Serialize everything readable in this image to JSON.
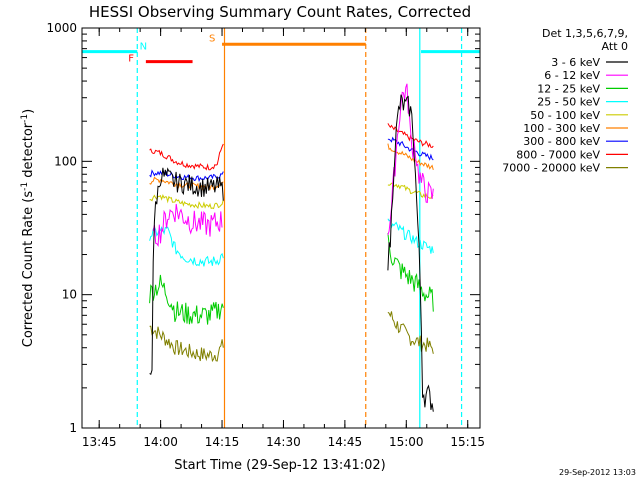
{
  "chart_data": {
    "type": "line",
    "title": "HESSI Observing Summary Count Rates, Corrected",
    "xlabel": "Start Time (29-Sep-12 13:41:02)",
    "ylabel_main": "Corrected Count Rate (s",
    "ylabel_sup1": "-1",
    "ylabel_mid": " detector",
    "ylabel_sup2": "-1",
    "ylabel_end": ")",
    "date_stamp": "29-Sep-2012 13:03",
    "y_scale": "log",
    "ylim": [
      1,
      1000
    ],
    "xlim_minutes": [
      13.68,
      15.3
    ],
    "x_ticks": [
      {
        "v": 13.75,
        "label": "13:45"
      },
      {
        "v": 14.0,
        "label": "14:00"
      },
      {
        "v": 14.25,
        "label": "14:15"
      },
      {
        "v": 14.5,
        "label": "14:30"
      },
      {
        "v": 14.75,
        "label": "14:45"
      },
      {
        "v": 15.0,
        "label": "15:00"
      },
      {
        "v": 15.25,
        "label": "15:15"
      }
    ],
    "y_ticks": [
      {
        "v": 1,
        "label": "1"
      },
      {
        "v": 10,
        "label": "10"
      },
      {
        "v": 100,
        "label": "100"
      },
      {
        "v": 1000,
        "label": "1000"
      }
    ],
    "legend": {
      "header1": "Det 1,3,5,6,7,9,",
      "header2": "Att 0",
      "placement": "right"
    },
    "series": [
      {
        "name": "3 - 6 keV",
        "color": "#000000",
        "seg1": [
          [
            13.955,
            2.6
          ],
          [
            13.965,
            3.0
          ],
          [
            13.97,
            20
          ],
          [
            13.98,
            50
          ],
          [
            13.99,
            60
          ],
          [
            14.0,
            80
          ],
          [
            14.03,
            75
          ],
          [
            14.06,
            70
          ],
          [
            14.1,
            68
          ],
          [
            14.15,
            65
          ],
          [
            14.2,
            63
          ],
          [
            14.24,
            65
          ],
          [
            14.255,
            60
          ]
        ],
        "seg2": [
          [
            14.925,
            18
          ],
          [
            14.935,
            25
          ],
          [
            14.94,
            40
          ],
          [
            14.95,
            100
          ],
          [
            14.96,
            170
          ],
          [
            14.97,
            250
          ],
          [
            14.98,
            280
          ],
          [
            14.99,
            260
          ],
          [
            15.01,
            260
          ],
          [
            15.02,
            230
          ],
          [
            15.03,
            150
          ],
          [
            15.04,
            60
          ],
          [
            15.05,
            25
          ],
          [
            15.06,
            8
          ],
          [
            15.065,
            2.0
          ],
          [
            15.075,
            1.7
          ],
          [
            15.09,
            1.8
          ],
          [
            15.1,
            1.6
          ],
          [
            15.11,
            1.5
          ]
        ]
      },
      {
        "name": "6 - 12 keV",
        "color": "#ff00ff",
        "seg1": [
          [
            13.97,
            26
          ],
          [
            13.98,
            28
          ],
          [
            14.0,
            30
          ],
          [
            14.03,
            40
          ],
          [
            14.06,
            43
          ],
          [
            14.1,
            38
          ],
          [
            14.13,
            35
          ],
          [
            14.16,
            34
          ],
          [
            14.2,
            33
          ],
          [
            14.23,
            35
          ],
          [
            14.25,
            36
          ]
        ],
        "seg2": [
          [
            14.925,
            30
          ],
          [
            14.94,
            45
          ],
          [
            14.96,
            130
          ],
          [
            14.975,
            250
          ],
          [
            14.985,
            320
          ],
          [
            15.0,
            340
          ],
          [
            15.01,
            260
          ],
          [
            15.02,
            120
          ],
          [
            15.035,
            140
          ],
          [
            15.045,
            90
          ],
          [
            15.06,
            70
          ],
          [
            15.08,
            60
          ],
          [
            15.1,
            55
          ],
          [
            15.11,
            55
          ]
        ]
      },
      {
        "name": "12 - 25 keV",
        "color": "#00cc00",
        "seg1": [
          [
            13.955,
            10
          ],
          [
            13.97,
            11
          ],
          [
            14.0,
            12
          ],
          [
            14.03,
            10
          ],
          [
            14.06,
            7.5
          ],
          [
            14.1,
            7.2
          ],
          [
            14.15,
            7.0
          ],
          [
            14.2,
            7.0
          ],
          [
            14.23,
            7.5
          ],
          [
            14.255,
            8.5
          ]
        ],
        "seg2": [
          [
            14.925,
            25
          ],
          [
            14.94,
            20
          ],
          [
            14.96,
            17
          ],
          [
            14.98,
            15
          ],
          [
            15.0,
            14
          ],
          [
            15.02,
            13
          ],
          [
            15.04,
            12
          ],
          [
            15.06,
            11
          ],
          [
            15.08,
            10
          ],
          [
            15.1,
            9.5
          ],
          [
            15.11,
            9.0
          ]
        ]
      },
      {
        "name": "25 - 50 keV",
        "color": "#00ffff",
        "seg1": [
          [
            13.955,
            28
          ],
          [
            13.97,
            29
          ],
          [
            14.0,
            30
          ],
          [
            14.03,
            30
          ],
          [
            14.06,
            22
          ],
          [
            14.1,
            19
          ],
          [
            14.15,
            18
          ],
          [
            14.2,
            17.5
          ],
          [
            14.23,
            18
          ],
          [
            14.255,
            20
          ]
        ],
        "seg2": [
          [
            14.925,
            35
          ],
          [
            14.94,
            33
          ],
          [
            14.96,
            32
          ],
          [
            14.98,
            30
          ],
          [
            15.0,
            28
          ],
          [
            15.02,
            27
          ],
          [
            15.04,
            25
          ],
          [
            15.06,
            24
          ],
          [
            15.08,
            23
          ],
          [
            15.1,
            22
          ],
          [
            15.11,
            22
          ]
        ]
      },
      {
        "name": "50 - 100 keV",
        "color": "#cccc00",
        "seg1": [
          [
            13.955,
            52
          ],
          [
            13.97,
            54
          ],
          [
            14.0,
            55
          ],
          [
            14.03,
            52
          ],
          [
            14.06,
            50
          ],
          [
            14.1,
            48
          ],
          [
            14.15,
            47
          ],
          [
            14.2,
            46
          ],
          [
            14.23,
            47
          ],
          [
            14.255,
            49
          ]
        ],
        "seg2": [
          [
            14.925,
            70
          ],
          [
            14.94,
            68
          ],
          [
            14.96,
            67
          ],
          [
            14.98,
            65
          ],
          [
            15.0,
            62
          ],
          [
            15.02,
            60
          ],
          [
            15.04,
            58
          ],
          [
            15.06,
            56
          ],
          [
            15.08,
            55
          ],
          [
            15.1,
            54
          ],
          [
            15.11,
            53
          ]
        ]
      },
      {
        "name": "100 - 300 keV",
        "color": "#ff8000",
        "seg1": [
          [
            13.955,
            70
          ],
          [
            13.97,
            72
          ],
          [
            14.0,
            73
          ],
          [
            14.03,
            70
          ],
          [
            14.06,
            68
          ],
          [
            14.1,
            66
          ],
          [
            14.15,
            65
          ],
          [
            14.2,
            64
          ],
          [
            14.23,
            66
          ],
          [
            14.255,
            70
          ]
        ],
        "seg2": [
          [
            14.925,
            130
          ],
          [
            14.94,
            125
          ],
          [
            14.96,
            120
          ],
          [
            14.98,
            115
          ],
          [
            15.0,
            110
          ],
          [
            15.02,
            105
          ],
          [
            15.04,
            100
          ],
          [
            15.06,
            97
          ],
          [
            15.08,
            94
          ],
          [
            15.1,
            91
          ],
          [
            15.11,
            90
          ]
        ]
      },
      {
        "name": "300 - 800 keV",
        "color": "#0000ff",
        "seg1": [
          [
            13.955,
            80
          ],
          [
            13.97,
            82
          ],
          [
            14.0,
            82
          ],
          [
            14.03,
            80
          ],
          [
            14.06,
            78
          ],
          [
            14.1,
            76
          ],
          [
            14.15,
            75
          ],
          [
            14.2,
            75
          ],
          [
            14.23,
            77
          ],
          [
            14.255,
            80
          ]
        ],
        "seg2": [
          [
            14.925,
            150
          ],
          [
            14.94,
            145
          ],
          [
            14.96,
            140
          ],
          [
            14.98,
            135
          ],
          [
            15.0,
            128
          ],
          [
            15.02,
            122
          ],
          [
            15.04,
            118
          ],
          [
            15.06,
            113
          ],
          [
            15.08,
            110
          ],
          [
            15.1,
            107
          ],
          [
            15.11,
            105
          ]
        ]
      },
      {
        "name": "800 - 7000 keV",
        "color": "#ff0000",
        "seg1": [
          [
            13.955,
            118
          ],
          [
            13.97,
            120
          ],
          [
            14.0,
            115
          ],
          [
            14.03,
            108
          ],
          [
            14.06,
            100
          ],
          [
            14.1,
            95
          ],
          [
            14.15,
            92
          ],
          [
            14.2,
            90
          ],
          [
            14.23,
            95
          ],
          [
            14.255,
            140
          ]
        ],
        "seg2": [
          [
            14.925,
            185
          ],
          [
            14.94,
            178
          ],
          [
            14.96,
            170
          ],
          [
            14.98,
            162
          ],
          [
            15.0,
            155
          ],
          [
            15.02,
            148
          ],
          [
            15.04,
            143
          ],
          [
            15.06,
            138
          ],
          [
            15.08,
            135
          ],
          [
            15.1,
            132
          ],
          [
            15.11,
            130
          ]
        ]
      },
      {
        "name": "7000 - 20000 keV",
        "color": "#808000",
        "seg1": [
          [
            13.955,
            5.8
          ],
          [
            13.97,
            5.5
          ],
          [
            14.0,
            5.0
          ],
          [
            14.03,
            4.5
          ],
          [
            14.06,
            4.0
          ],
          [
            14.1,
            3.8
          ],
          [
            14.15,
            3.6
          ],
          [
            14.2,
            3.5
          ],
          [
            14.23,
            3.6
          ],
          [
            14.255,
            4.2
          ]
        ],
        "seg2": [
          [
            14.925,
            7.5
          ],
          [
            14.94,
            6.8
          ],
          [
            14.96,
            6.0
          ],
          [
            14.98,
            5.5
          ],
          [
            15.0,
            5.0
          ],
          [
            15.02,
            4.7
          ],
          [
            15.04,
            4.5
          ],
          [
            15.06,
            4.3
          ],
          [
            15.08,
            4.2
          ],
          [
            15.1,
            4.0
          ],
          [
            15.11,
            4.0
          ]
        ]
      }
    ],
    "flag_bars": [
      {
        "color": "#00ffff",
        "x1": 13.68,
        "x2": 13.905,
        "y": 665
      },
      {
        "color": "#00ffff",
        "x1": 15.06,
        "x2": 15.3,
        "y": 665
      },
      {
        "color": "#ff0000",
        "x1": 13.94,
        "x2": 14.13,
        "y": 560
      },
      {
        "color": "#ff8000",
        "x1": 14.25,
        "x2": 14.835,
        "y": 755
      }
    ],
    "flag_labels": [
      {
        "text": "N",
        "color": "#00ffff",
        "x": 13.93,
        "y": 690
      },
      {
        "text": "F",
        "color": "#ff0000",
        "x": 13.88,
        "y": 560
      },
      {
        "text": "S",
        "color": "#ff8000",
        "x": 14.21,
        "y": 790
      }
    ],
    "vlines": [
      {
        "x": 13.905,
        "color": "#00ffff",
        "dash": true
      },
      {
        "x": 14.26,
        "color": "#ff8000",
        "dash": false
      },
      {
        "x": 14.835,
        "color": "#ff8000",
        "dash": true
      },
      {
        "x": 15.055,
        "color": "#00ffff",
        "dash": false
      },
      {
        "x": 15.225,
        "color": "#00ffff",
        "dash": true
      }
    ],
    "grid": false
  }
}
